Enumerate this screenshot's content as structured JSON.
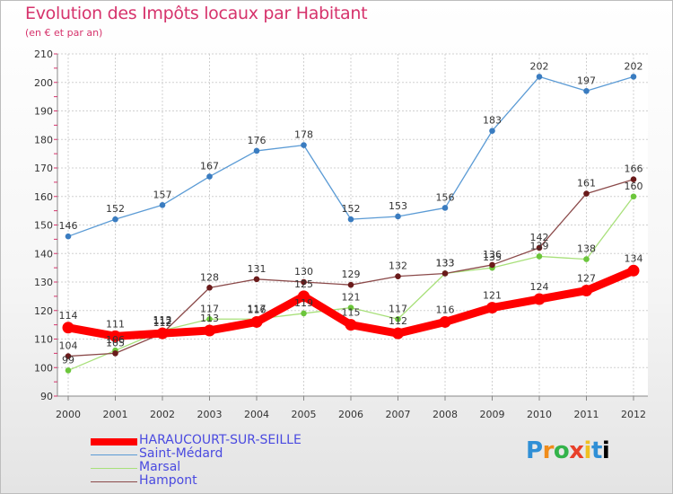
{
  "title": "Evolution des Impôts locaux par Habitant",
  "subtitle": "(en € et par an)",
  "brand": "Proxiti",
  "chart_data": {
    "type": "line",
    "title": "Evolution des Impôts locaux par Habitant",
    "subtitle": "(en € et par an)",
    "categories": [
      "2000",
      "2001",
      "2002",
      "2003",
      "2004",
      "2005",
      "2006",
      "2007",
      "2008",
      "2009",
      "2010",
      "2011",
      "2012"
    ],
    "ylim": [
      90,
      210
    ],
    "yticks": [
      90,
      100,
      110,
      120,
      130,
      140,
      150,
      160,
      170,
      180,
      190,
      200,
      210
    ],
    "grid": true,
    "legend_position": "bottom-left",
    "series": [
      {
        "name": "Saint-Médard",
        "color": "#5b9bd5",
        "marker": "#3a7cc0",
        "values": [
          146,
          152,
          157,
          167,
          176,
          178,
          152,
          153,
          156,
          183,
          202,
          197,
          202
        ]
      },
      {
        "name": "Marsal",
        "color": "#a8e07a",
        "marker": "#6cc63c",
        "values": [
          99,
          106,
          113,
          117,
          117,
          119,
          121,
          117,
          133,
          135,
          139,
          138,
          160
        ]
      },
      {
        "name": "Hampont",
        "color": "#8b4a4a",
        "marker": "#6a1a1a",
        "values": [
          104,
          105,
          112,
          128,
          131,
          130,
          129,
          132,
          133,
          136,
          142,
          161,
          166
        ]
      },
      {
        "name": "HARAUCOURT-SUR-SEILLE",
        "color": "#ff0000",
        "marker": "#ff0000",
        "values": [
          114,
          111,
          112,
          113,
          116,
          125,
          115,
          112,
          116,
          121,
          124,
          127,
          134
        ]
      }
    ]
  }
}
